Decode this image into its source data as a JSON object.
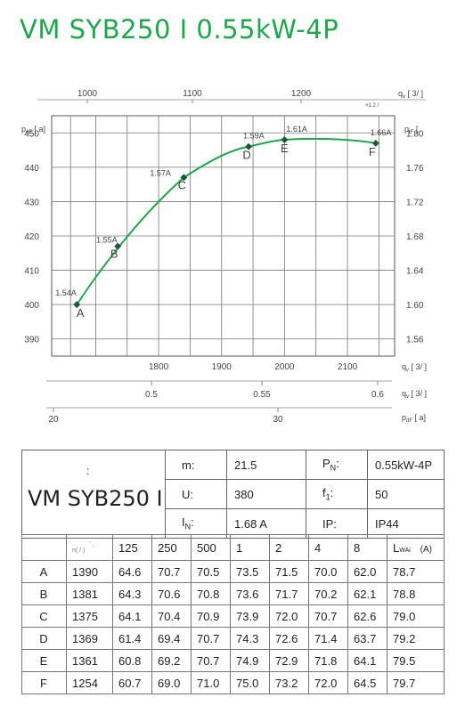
{
  "title": "VM SYB250 I 0.55kW-4P",
  "chart_data": {
    "type": "line",
    "top_axis": {
      "label": "q",
      "label_sub": "v",
      "unit": "[   3/  ]",
      "ticks": [
        1000,
        1100,
        1200
      ],
      "extra": "×1.2  /"
    },
    "left_axis": {
      "label": "p",
      "label_sub": "dF",
      "unit": "[   a]",
      "ticks": [
        390,
        400,
        410,
        420,
        430,
        440,
        450
      ],
      "ylim": [
        385,
        455
      ]
    },
    "right_axis": {
      "label": "p",
      "label_sub": "tF",
      "unit": "[",
      "ticks": [
        "1.56",
        "1.60",
        "1.64",
        "1.68",
        "1.72",
        "1.76",
        "1.80"
      ]
    },
    "bottom_axis": {
      "label": "q",
      "label_sub": "v",
      "unit": "[   3/  ]",
      "ticks": [
        1800,
        1900,
        2000,
        2100
      ],
      "xlim": [
        1630,
        2175
      ]
    },
    "axis2": {
      "label": "q",
      "label_sub": "v",
      "unit": "[   3/  ]",
      "ticks": [
        "0.5",
        "0.55",
        "0.6"
      ]
    },
    "axis3": {
      "label": "p",
      "label_sub": "dF",
      "unit": "[   a]",
      "ticks": [
        "20",
        "30"
      ]
    },
    "grid": true,
    "series": [
      {
        "color": "#1ea64b",
        "points": [
          {
            "x": 1670,
            "y": 400,
            "id": "A",
            "current": "1.54A"
          },
          {
            "x": 1735,
            "y": 417,
            "id": "B",
            "current": "1.55A"
          },
          {
            "x": 1840,
            "y": 437,
            "id": "C",
            "current": "1.57A"
          },
          {
            "x": 1943,
            "y": 446,
            "id": "D",
            "current": "1.59A"
          },
          {
            "x": 2000,
            "y": 448,
            "id": "E",
            "current": "1.61A"
          },
          {
            "x": 2145,
            "y": 447,
            "id": "F",
            "current": "1.66A"
          }
        ],
        "curve_peak": {
          "x": 2048,
          "y": 448.5
        }
      }
    ]
  },
  "specs": {
    "model_dot": ":",
    "model": "VM SYB250 I",
    "m_label": "m:",
    "m_value": "21.5",
    "pn_label": "P",
    "pn_sub": "N",
    "pn_colon": ":",
    "pn_value": "0.55kW-4P",
    "u_label": "U:",
    "u_value": "380",
    "f_label": "f",
    "f_sub": "1",
    "f_colon": ":",
    "f_value": "50",
    "i_label": "I",
    "i_sub": "N",
    "i_colon": ":",
    "i_value": "1.68  A",
    "ip_label": "IP:",
    "ip_value": "IP44"
  },
  "table": {
    "n_header": "n(  /   )",
    "n_mark": "' ,",
    "freq_headers": [
      "125",
      "250",
      "500",
      "1",
      "2",
      "4",
      "8"
    ],
    "lwa_label": "L",
    "lwa_sub": "WAi",
    "lwa_unit": "(A)",
    "rows": [
      {
        "point": "A",
        "n": "1390",
        "v": [
          "64.6",
          "70.7",
          "70.5",
          "73.5",
          "71.5",
          "70.0",
          "62.0"
        ],
        "lwa": "78.7"
      },
      {
        "point": "B",
        "n": "1381",
        "v": [
          "64.3",
          "70.6",
          "70.8",
          "73.6",
          "71.7",
          "70.2",
          "62.1"
        ],
        "lwa": "78.8"
      },
      {
        "point": "C",
        "n": "1375",
        "v": [
          "64.1",
          "70.4",
          "70.9",
          "73.9",
          "72.0",
          "70.7",
          "62.6"
        ],
        "lwa": "79.0"
      },
      {
        "point": "D",
        "n": "1369",
        "v": [
          "61.4",
          "69.4",
          "70.7",
          "74.3",
          "72.6",
          "71.4",
          "63.7"
        ],
        "lwa": "79.2"
      },
      {
        "point": "E",
        "n": "1361",
        "v": [
          "60.8",
          "69.2",
          "70.7",
          "74.9",
          "72.9",
          "71.8",
          "64.1"
        ],
        "lwa": "79.5"
      },
      {
        "point": "F",
        "n": "1254",
        "v": [
          "60.7",
          "69.0",
          "71.0",
          "75.0",
          "73.2",
          "72.0",
          "64.5"
        ],
        "lwa": "79.7"
      }
    ]
  }
}
